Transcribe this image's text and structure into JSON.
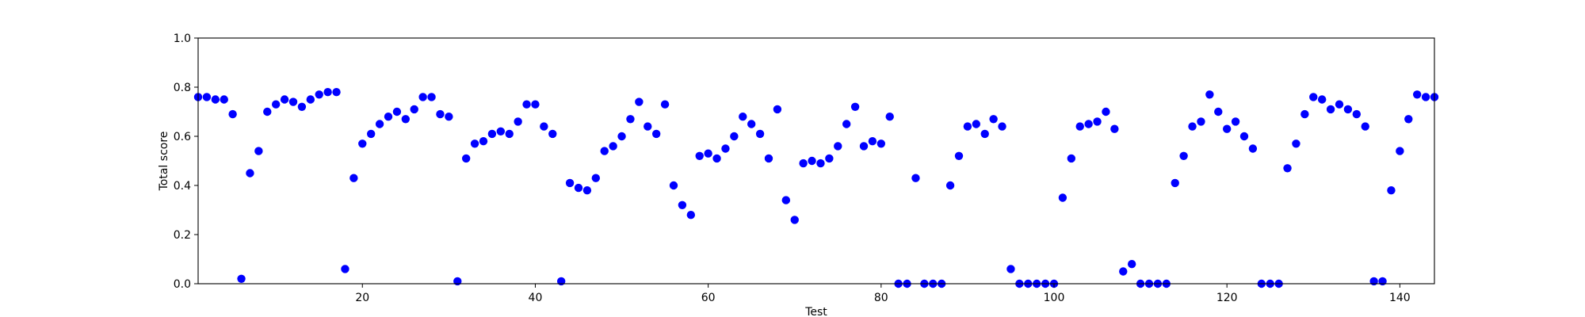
{
  "chart_data": {
    "type": "scatter",
    "title": "",
    "xlabel": "Test",
    "ylabel": "Total score",
    "xlim": [
      1,
      144
    ],
    "ylim": [
      0.0,
      1.0
    ],
    "xticks": [
      20,
      40,
      60,
      80,
      100,
      120,
      140
    ],
    "xtick_labels": [
      "20",
      "40",
      "60",
      "80",
      "100",
      "120",
      "140"
    ],
    "yticks": [
      0.0,
      0.2,
      0.4,
      0.6,
      0.8,
      1.0
    ],
    "ytick_labels": [
      "0.0",
      "0.2",
      "0.4",
      "0.6",
      "0.8",
      "1.0"
    ],
    "grid": false,
    "marker_color": "#0000ff",
    "x": [
      1,
      2,
      3,
      4,
      5,
      6,
      7,
      8,
      9,
      10,
      11,
      12,
      13,
      14,
      15,
      16,
      17,
      18,
      19,
      20,
      21,
      22,
      23,
      24,
      25,
      26,
      27,
      28,
      29,
      30,
      31,
      32,
      33,
      34,
      35,
      36,
      37,
      38,
      39,
      40,
      41,
      42,
      43,
      44,
      45,
      46,
      47,
      48,
      49,
      50,
      51,
      52,
      53,
      54,
      55,
      56,
      57,
      58,
      59,
      60,
      61,
      62,
      63,
      64,
      65,
      66,
      67,
      68,
      69,
      70,
      71,
      72,
      73,
      74,
      75,
      76,
      77,
      78,
      79,
      80,
      81,
      82,
      83,
      84,
      85,
      86,
      87,
      88,
      89,
      90,
      91,
      92,
      93,
      94,
      95,
      96,
      97,
      98,
      99,
      100,
      101,
      102,
      103,
      104,
      105,
      106,
      107,
      108,
      109,
      110,
      111,
      112,
      113,
      114,
      115,
      116,
      117,
      118,
      119,
      120,
      121,
      122,
      123,
      124,
      125,
      126,
      127,
      128,
      129,
      130,
      131,
      132,
      133,
      134,
      135,
      136,
      137,
      138,
      139,
      140,
      141,
      142,
      143,
      144
    ],
    "y": [
      0.76,
      0.76,
      0.75,
      0.75,
      0.69,
      0.02,
      0.45,
      0.54,
      0.7,
      0.73,
      0.75,
      0.74,
      0.72,
      0.75,
      0.77,
      0.78,
      0.78,
      0.06,
      0.43,
      0.57,
      0.61,
      0.65,
      0.68,
      0.7,
      0.67,
      0.71,
      0.76,
      0.76,
      0.69,
      0.68,
      0.01,
      0.51,
      0.57,
      0.58,
      0.61,
      0.62,
      0.61,
      0.66,
      0.73,
      0.73,
      0.64,
      0.61,
      0.01,
      0.41,
      0.39,
      0.38,
      0.43,
      0.54,
      0.56,
      0.6,
      0.67,
      0.74,
      0.64,
      0.61,
      0.73,
      0.4,
      0.32,
      0.28,
      0.52,
      0.53,
      0.51,
      0.55,
      0.6,
      0.68,
      0.65,
      0.61,
      0.51,
      0.71,
      0.34,
      0.26,
      0.49,
      0.5,
      0.49,
      0.51,
      0.56,
      0.65,
      0.72,
      0.56,
      0.58,
      0.57,
      0.68,
      0.0,
      0.0,
      0.43,
      0.0,
      0.0,
      0.0,
      0.4,
      0.52,
      0.64,
      0.65,
      0.61,
      0.67,
      0.64,
      0.06,
      0.0,
      0.0,
      0.0,
      0.0,
      0.0,
      0.35,
      0.51,
      0.64,
      0.65,
      0.66,
      0.7,
      0.63,
      0.05,
      0.08,
      0.0,
      0.0,
      0.0,
      0.0,
      0.41,
      0.52,
      0.64,
      0.66,
      0.77,
      0.7,
      0.63,
      0.66,
      0.6,
      0.55,
      0.0,
      0.0,
      0.0,
      0.47,
      0.57,
      0.69,
      0.76,
      0.75,
      0.71,
      0.73,
      0.71,
      0.69,
      0.64,
      0.01,
      0.01,
      0.38,
      0.54,
      0.67,
      0.77,
      0.76,
      0.76
    ]
  }
}
